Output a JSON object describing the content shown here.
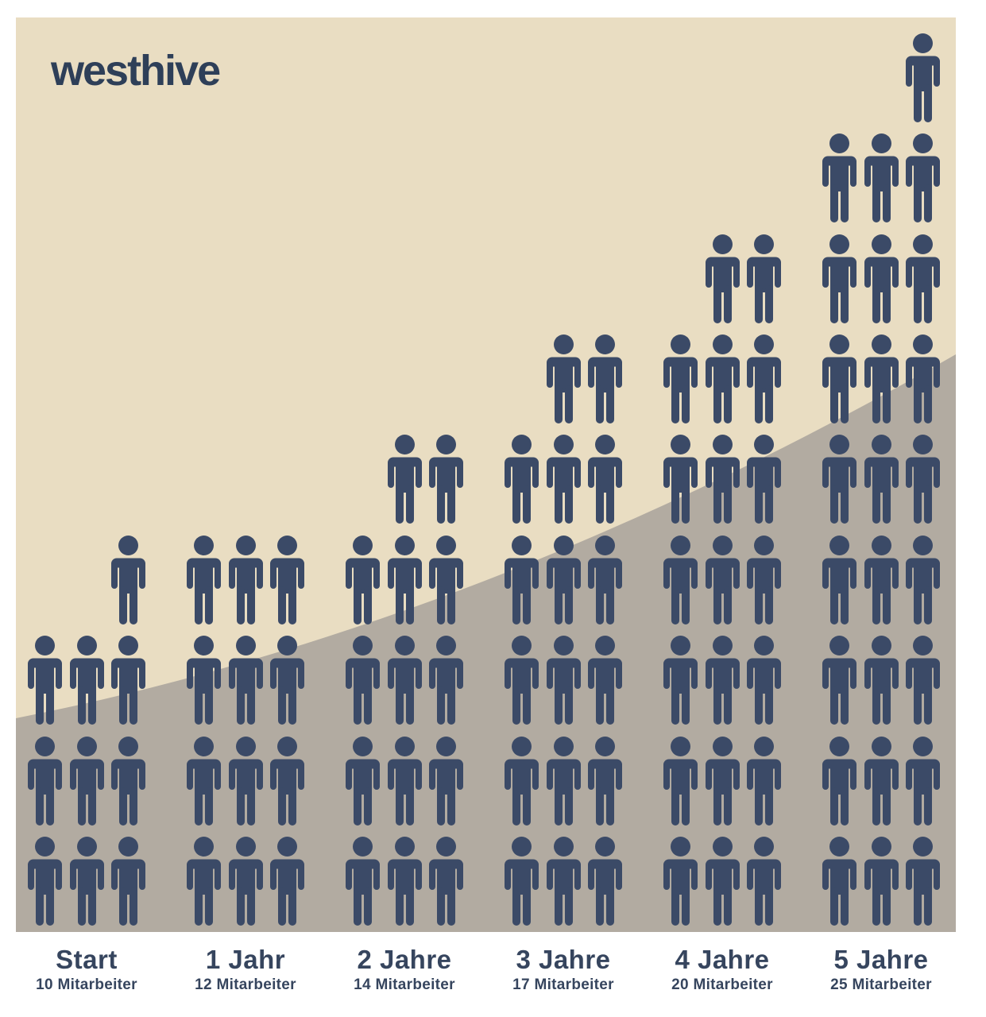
{
  "brand": {
    "logo_text": "westhive"
  },
  "colors": {
    "page_background": "#ffffff",
    "canvas_background": "#e9ddc2",
    "slope_fill": "#b2aba1",
    "person_fill": "#3b4a67",
    "label_text": "#36455e",
    "logo_text": "#2e3f58"
  },
  "chart_data": {
    "type": "pictogram",
    "icon": "person",
    "icons_per_row": 3,
    "stacking": "bottom-up",
    "partial_row_alignment": "right",
    "unit": "Mitarbeiter",
    "background_shape": "rising-slope-curve",
    "categories": [
      "Start",
      "1 Jahr",
      "2 Jahre",
      "3 Jahre",
      "4 Jahre",
      "5 Jahre"
    ],
    "values": [
      10,
      12,
      14,
      17,
      20,
      25
    ],
    "items": [
      {
        "label": "Start",
        "sublabel": "10 Mitarbeiter",
        "value": 10
      },
      {
        "label": "1 Jahr",
        "sublabel": "12 Mitarbeiter",
        "value": 12
      },
      {
        "label": "2 Jahre",
        "sublabel": "14 Mitarbeiter",
        "value": 14
      },
      {
        "label": "3 Jahre",
        "sublabel": "17 Mitarbeiter",
        "value": 17
      },
      {
        "label": "4 Jahre",
        "sublabel": "20 Mitarbeiter",
        "value": 20
      },
      {
        "label": "5 Jahre",
        "sublabel": "25 Mitarbeiter",
        "value": 25
      }
    ]
  }
}
